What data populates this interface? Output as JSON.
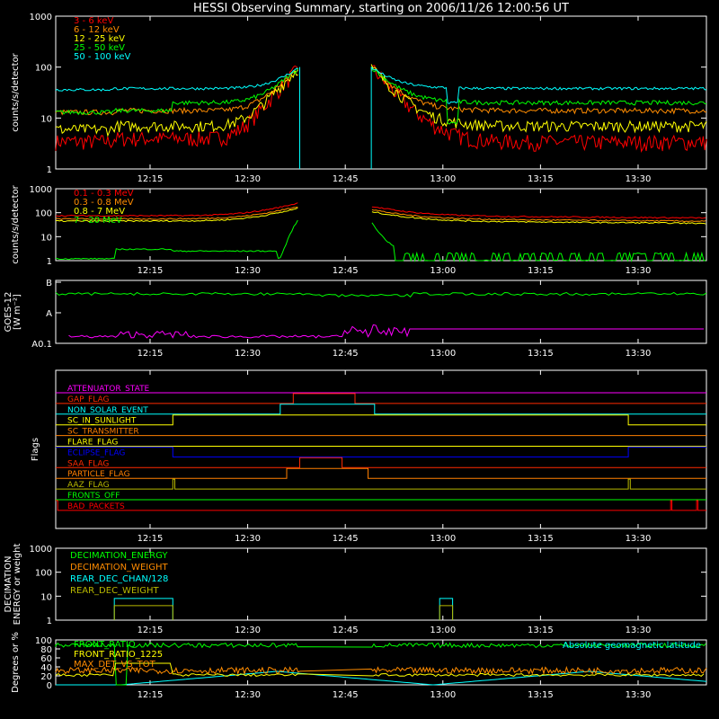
{
  "title": "HESSI Observing Summary, starting on 2006/11/26 12:00:56 UT",
  "time_ticks": [
    "12:15",
    "12:30",
    "12:45",
    "13:00",
    "13:15",
    "13:30"
  ],
  "chart_data": [
    {
      "type": "line",
      "id": "low-energy",
      "ylabel": "counts/s/detector",
      "yscale": "log",
      "ylim": [
        1,
        1000
      ],
      "ytick_labels": [
        "1",
        "10",
        "100",
        "1000"
      ],
      "legend": "top-left",
      "series": [
        {
          "name": "3 - 6 keV",
          "color": "#ff0000"
        },
        {
          "name": "6 - 12 keV",
          "color": "#ff8c00"
        },
        {
          "name": "12 - 25 keV",
          "color": "#ffff00"
        },
        {
          "name": "25 - 50 keV",
          "color": "#00ff00"
        },
        {
          "name": "50 - 100 keV",
          "color": "#00ffff"
        }
      ]
    },
    {
      "type": "line",
      "id": "high-energy",
      "ylabel": "counts/s/detector",
      "yscale": "log",
      "ylim": [
        1,
        1000
      ],
      "ytick_labels": [
        "1",
        "10",
        "100",
        "1000"
      ],
      "legend": "top-left",
      "series": [
        {
          "name": "0.1 - 0.3 MeV",
          "color": "#ff0000"
        },
        {
          "name": "0.3 - 0.8 MeV",
          "color": "#ff8c00"
        },
        {
          "name": "0.8 - 7 MeV",
          "color": "#ffff00"
        },
        {
          "name": "7 - 20 MeV",
          "color": "#00ff00"
        }
      ]
    },
    {
      "type": "line",
      "id": "goes",
      "ylabel": "GOES-12",
      "ylabel2": "[W m⁻²]",
      "ytick_labels": [
        "B",
        "A",
        "A0.1"
      ]
    },
    {
      "type": "line",
      "id": "flags",
      "ylabel": "Flags",
      "flags": [
        {
          "name": "ATTENUATOR_STATE",
          "color": "#ff00ff"
        },
        {
          "name": "GAP_FLAG",
          "color": "#ff2a00"
        },
        {
          "name": "NON_SOLAR_EVENT",
          "color": "#00ffff"
        },
        {
          "name": "SC_IN_SUNLIGHT",
          "color": "#ffff00"
        },
        {
          "name": "SC_TRANSMITTER",
          "color": "#ff7f00"
        },
        {
          "name": "FLARE_FLAG",
          "color": "#ffff00"
        },
        {
          "name": "ECLIPSE_FLAG",
          "color": "#0000ff"
        },
        {
          "name": "SAA_FLAG",
          "color": "#ff2a00"
        },
        {
          "name": "PARTICLE_FLAG",
          "color": "#ff7f00"
        },
        {
          "name": "AAZ_FLAG",
          "color": "#b8b800"
        },
        {
          "name": "FRONTS_OFF",
          "color": "#00ff00"
        },
        {
          "name": "BAD_PACKETS",
          "color": "#ff0000"
        }
      ]
    },
    {
      "type": "line",
      "id": "decimation",
      "ylabel": "DECIMATION",
      "ylabel2": "ENERGY or weight",
      "yscale": "log",
      "ylim": [
        1,
        1000
      ],
      "ytick_labels": [
        "1",
        "10",
        "100",
        "1000"
      ],
      "series": [
        {
          "name": "DECIMATION_ENERGY",
          "color": "#00ff00"
        },
        {
          "name": "DECIMATION_WEIGHT",
          "color": "#ff8c00"
        },
        {
          "name": "REAR_DEC_CHAN/128",
          "color": "#00ffff"
        },
        {
          "name": "REAR_DEC_WEIGHT",
          "color": "#b8b800"
        }
      ]
    },
    {
      "type": "line",
      "id": "ratios",
      "ylabel": "Degrees or %",
      "ylim": [
        0,
        100
      ],
      "ytick_labels": [
        "0",
        "20",
        "40",
        "60",
        "80",
        "100"
      ],
      "annotation": "Absolute geomagnetic latitude",
      "series": [
        {
          "name": "FRONT_RATIO",
          "color": "#00ff00"
        },
        {
          "name": "FRONT_RATIO_1225",
          "color": "#ffff00"
        },
        {
          "name": "MAX_DET_VS_TOT",
          "color": "#ff8c00"
        }
      ]
    }
  ],
  "colors": {
    "background": "#000000",
    "axes": "#ffffff",
    "latitude": "#00ffff"
  }
}
